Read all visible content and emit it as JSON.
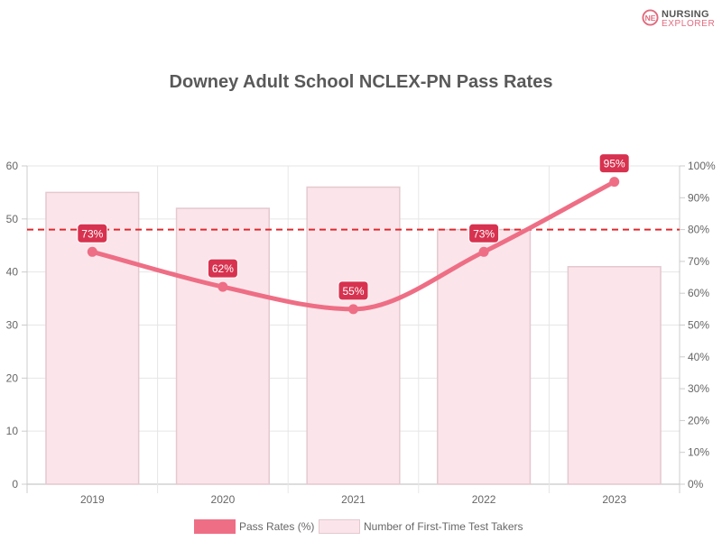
{
  "brand": {
    "logo_line1": "NURSING",
    "logo_line2": "EXPLORER",
    "logo_mark": "NE",
    "logo_color": "#e06b7e"
  },
  "chart_data": {
    "type": "bar",
    "title": "Downey Adult School NCLEX-PN Pass Rates",
    "categories": [
      "2019",
      "2020",
      "2021",
      "2022",
      "2023"
    ],
    "series": [
      {
        "name": "Pass Rates (%)",
        "type": "line",
        "axis": "right",
        "values": [
          73,
          62,
          55,
          73,
          95
        ],
        "value_labels": [
          "73%",
          "62%",
          "55%",
          "73%",
          "95%"
        ],
        "color": "#ee6e85"
      },
      {
        "name": "Number of First-Time Test Takers",
        "type": "bar",
        "axis": "left",
        "values": [
          55,
          52,
          56,
          48,
          41
        ],
        "color": "#fbe5ea",
        "border_color": "#e4c9cf"
      }
    ],
    "reference_line": {
      "axis": "right",
      "value": 80,
      "color": "#e0282e",
      "style": "dashed"
    },
    "y_left": {
      "min": 0,
      "max": 60,
      "ticks": [
        "0",
        "10",
        "20",
        "30",
        "40",
        "50",
        "60"
      ]
    },
    "y_right": {
      "min": 0,
      "max": 100,
      "ticks": [
        "0%",
        "10%",
        "20%",
        "30%",
        "40%",
        "50%",
        "60%",
        "70%",
        "80%",
        "90%",
        "100%"
      ]
    },
    "grid": true,
    "legend_position": "bottom",
    "label_box_color": "#d7324f"
  }
}
